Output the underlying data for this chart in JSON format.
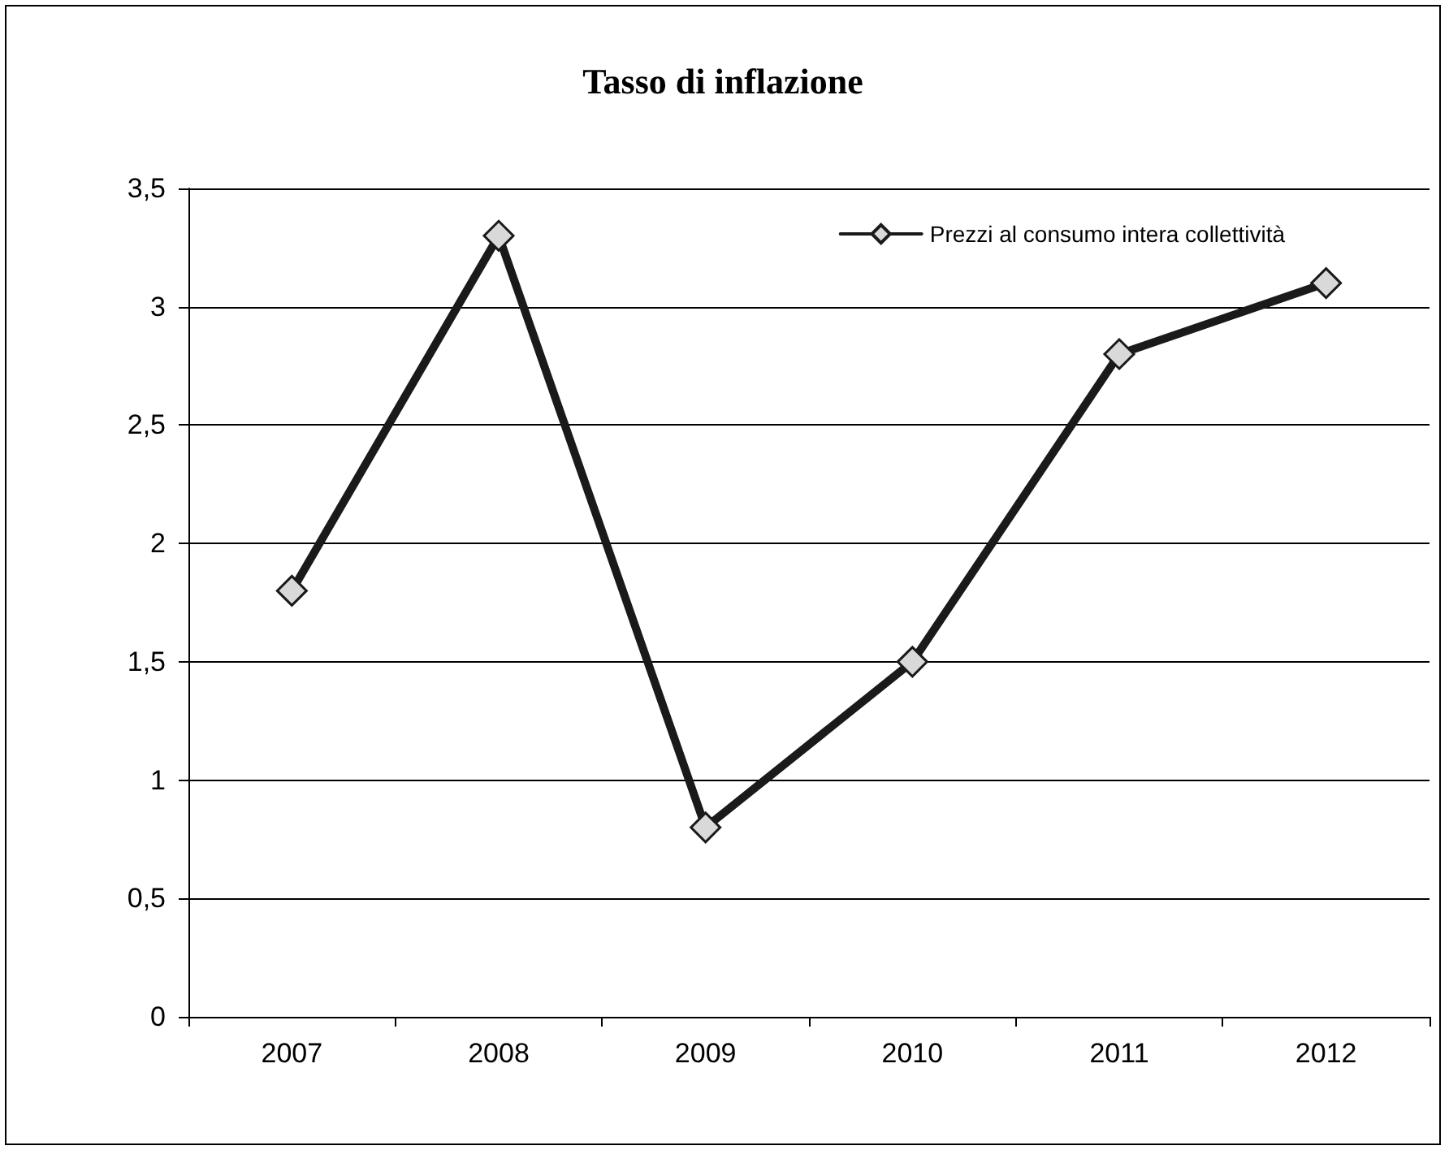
{
  "chart_data": {
    "type": "line",
    "title": "Tasso di inflazione",
    "categories": [
      "2007",
      "2008",
      "2009",
      "2010",
      "2011",
      "2012"
    ],
    "series": [
      {
        "name": "Prezzi al consumo intera collettività",
        "color": "#1a1a1a",
        "values": [
          1.8,
          3.3,
          0.8,
          1.5,
          2.8,
          3.1
        ]
      }
    ],
    "ylim": [
      0,
      3.5
    ],
    "yticks": [
      0,
      {
        "value": 0.5,
        "label": "0,5"
      },
      1,
      {
        "value": 1.5,
        "label": "1,5"
      },
      2,
      {
        "value": 2.5,
        "label": "2,5"
      },
      3,
      {
        "value": 3.5,
        "label": "3,5"
      }
    ],
    "grid": "y",
    "legend": "top right",
    "marker": "diamond",
    "line_style": "solid"
  }
}
